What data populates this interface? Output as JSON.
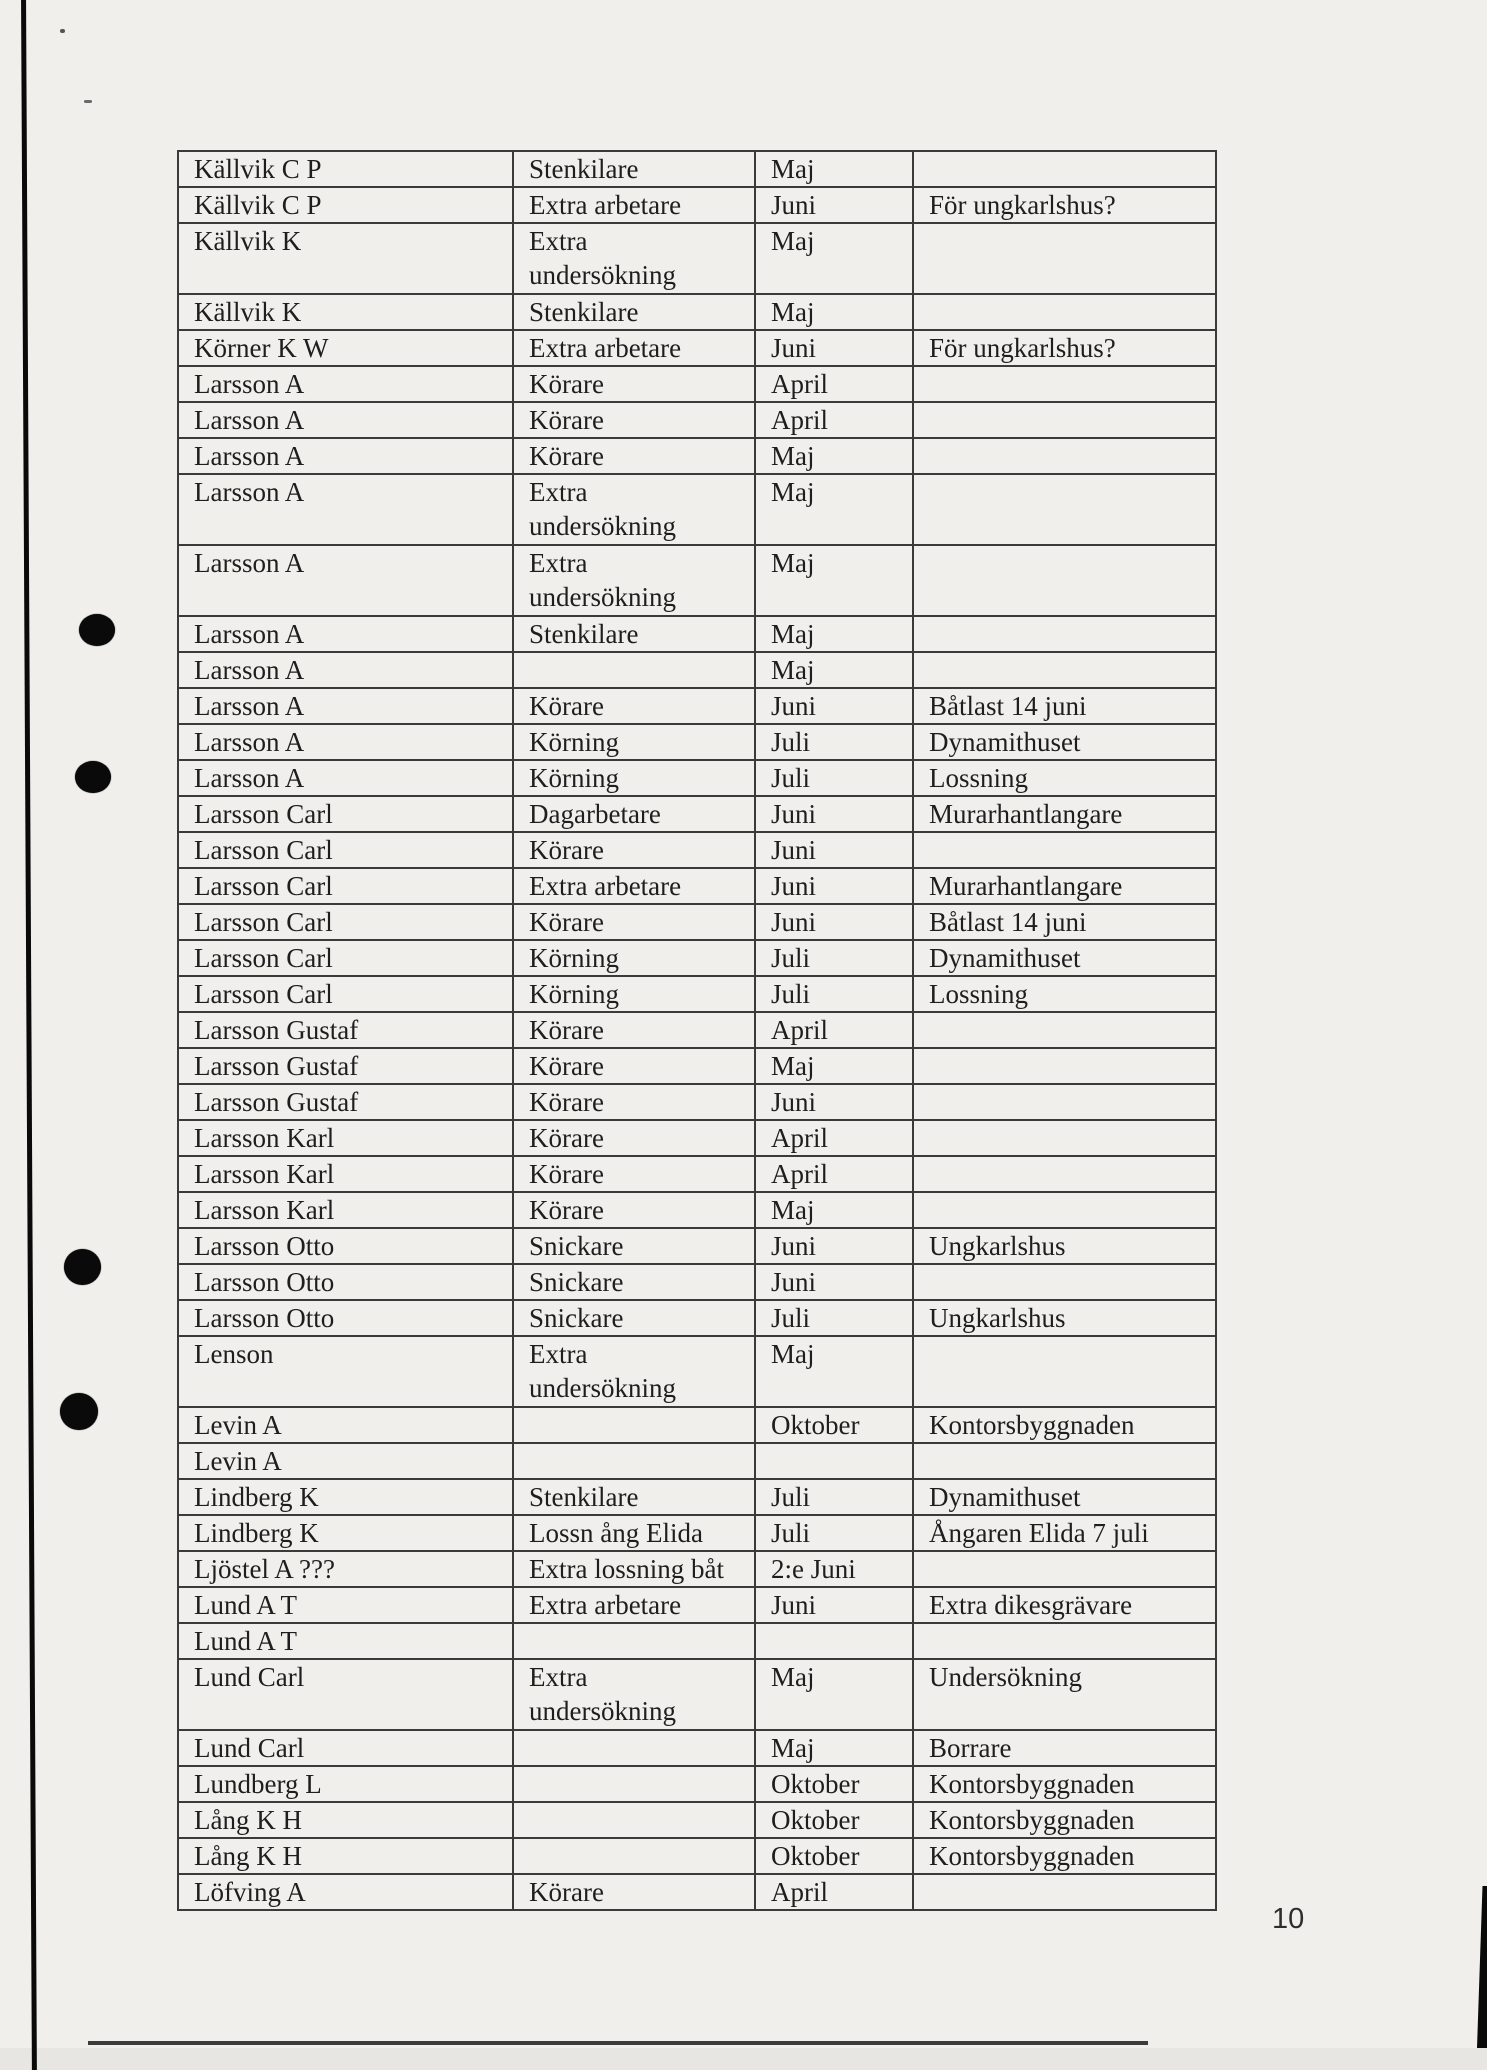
{
  "page": {
    "number": "10",
    "paper_color": "#f0efec",
    "ink_color": "#1e1e1e",
    "border_color": "#3a3a3a",
    "artifact_color": "#0a0a0a"
  },
  "scan_artifacts": {
    "hole_punch_count": 4,
    "left_edge_line": true,
    "bottom_edge_line": true
  },
  "table": {
    "column_keys": [
      "name",
      "role",
      "month",
      "note"
    ],
    "rows": [
      {
        "name": "Källvik C P",
        "role": "Stenkilare",
        "month": "Maj",
        "note": "",
        "tall": false
      },
      {
        "name": "Källvik C P",
        "role": "Extra arbetare",
        "month": "Juni",
        "note": "För ungkarlshus?",
        "tall": false
      },
      {
        "name": "Källvik K",
        "role": "Extra\nundersökning",
        "month": "Maj",
        "note": "",
        "tall": true
      },
      {
        "name": "Källvik K",
        "role": "Stenkilare",
        "month": "Maj",
        "note": "",
        "tall": false
      },
      {
        "name": "Körner K W",
        "role": "Extra arbetare",
        "month": "Juni",
        "note": "För ungkarlshus?",
        "tall": false
      },
      {
        "name": "Larsson A",
        "role": "Körare",
        "month": "April",
        "note": "",
        "tall": false
      },
      {
        "name": "Larsson A",
        "role": "Körare",
        "month": "April",
        "note": "",
        "tall": false
      },
      {
        "name": "Larsson A",
        "role": "Körare",
        "month": "Maj",
        "note": "",
        "tall": false
      },
      {
        "name": "Larsson A",
        "role": "Extra\nundersökning",
        "month": "Maj",
        "note": "",
        "tall": true
      },
      {
        "name": "Larsson A",
        "role": "Extra\nundersökning",
        "month": "Maj",
        "note": "",
        "tall": true
      },
      {
        "name": "Larsson A",
        "role": "Stenkilare",
        "month": "Maj",
        "note": "",
        "tall": false
      },
      {
        "name": "Larsson A",
        "role": "",
        "month": "Maj",
        "note": "",
        "tall": false
      },
      {
        "name": "Larsson A",
        "role": "Körare",
        "month": "Juni",
        "note": "Båtlast 14 juni",
        "tall": false
      },
      {
        "name": "Larsson A",
        "role": "Körning",
        "month": "Juli",
        "note": "Dynamithuset",
        "tall": false
      },
      {
        "name": "Larsson A",
        "role": "Körning",
        "month": "Juli",
        "note": "Lossning",
        "tall": false
      },
      {
        "name": "Larsson Carl",
        "role": "Dagarbetare",
        "month": "Juni",
        "note": "Murarhantlangare",
        "tall": false
      },
      {
        "name": "Larsson Carl",
        "role": "Körare",
        "month": "Juni",
        "note": "",
        "tall": false
      },
      {
        "name": "Larsson Carl",
        "role": "Extra arbetare",
        "month": "Juni",
        "note": "Murarhantlangare",
        "tall": false
      },
      {
        "name": "Larsson Carl",
        "role": "Körare",
        "month": "Juni",
        "note": "Båtlast 14 juni",
        "tall": false
      },
      {
        "name": "Larsson Carl",
        "role": "Körning",
        "month": "Juli",
        "note": "Dynamithuset",
        "tall": false
      },
      {
        "name": "Larsson Carl",
        "role": "Körning",
        "month": "Juli",
        "note": "Lossning",
        "tall": false
      },
      {
        "name": "Larsson Gustaf",
        "role": "Körare",
        "month": "April",
        "note": "",
        "tall": false
      },
      {
        "name": "Larsson Gustaf",
        "role": "Körare",
        "month": "Maj",
        "note": "",
        "tall": false
      },
      {
        "name": "Larsson Gustaf",
        "role": "Körare",
        "month": "Juni",
        "note": "",
        "tall": false
      },
      {
        "name": "Larsson Karl",
        "role": "Körare",
        "month": "April",
        "note": "",
        "tall": false
      },
      {
        "name": "Larsson Karl",
        "role": "Körare",
        "month": "April",
        "note": "",
        "tall": false
      },
      {
        "name": "Larsson Karl",
        "role": "Körare",
        "month": "Maj",
        "note": "",
        "tall": false
      },
      {
        "name": "Larsson Otto",
        "role": "Snickare",
        "month": "Juni",
        "note": "Ungkarlshus",
        "tall": false
      },
      {
        "name": "Larsson Otto",
        "role": "Snickare",
        "month": "Juni",
        "note": "",
        "tall": false
      },
      {
        "name": "Larsson Otto",
        "role": "Snickare",
        "month": "Juli",
        "note": "Ungkarlshus",
        "tall": false
      },
      {
        "name": "Lenson",
        "role": "Extra\nundersökning",
        "month": "Maj",
        "note": "",
        "tall": true
      },
      {
        "name": "Levin A",
        "role": "",
        "month": "Oktober",
        "note": "Kontorsbyggnaden",
        "tall": false
      },
      {
        "name": "Levin A",
        "role": "",
        "month": "",
        "note": "",
        "tall": false
      },
      {
        "name": "Lindberg K",
        "role": "Stenkilare",
        "month": "Juli",
        "note": "Dynamithuset",
        "tall": false
      },
      {
        "name": "Lindberg K",
        "role": "Lossn ång Elida",
        "month": "Juli",
        "note": "Ångaren Elida 7 juli",
        "tall": false
      },
      {
        "name": "Ljöstel A ???",
        "role": "Extra lossning båt",
        "month": "2:e Juni",
        "note": "",
        "tall": false
      },
      {
        "name": "Lund A T",
        "role": "Extra arbetare",
        "month": "Juni",
        "note": "Extra dikesgrävare",
        "tall": false
      },
      {
        "name": "Lund A T",
        "role": "",
        "month": "",
        "note": "",
        "tall": false
      },
      {
        "name": "Lund Carl",
        "role": "Extra\nundersökning",
        "month": "Maj",
        "note": "Undersökning",
        "tall": true
      },
      {
        "name": "Lund Carl",
        "role": "",
        "month": "Maj",
        "note": "Borrare",
        "tall": false
      },
      {
        "name": "Lundberg L",
        "role": "",
        "month": "Oktober",
        "note": "Kontorsbyggnaden",
        "tall": false
      },
      {
        "name": "Lång K H",
        "role": "",
        "month": "Oktober",
        "note": "Kontorsbyggnaden",
        "tall": false
      },
      {
        "name": "Lång K H",
        "role": "",
        "month": "Oktober",
        "note": "Kontorsbyggnaden",
        "tall": false
      },
      {
        "name": "Löfving A",
        "role": "Körare",
        "month": "April",
        "note": "",
        "tall": false
      }
    ]
  }
}
